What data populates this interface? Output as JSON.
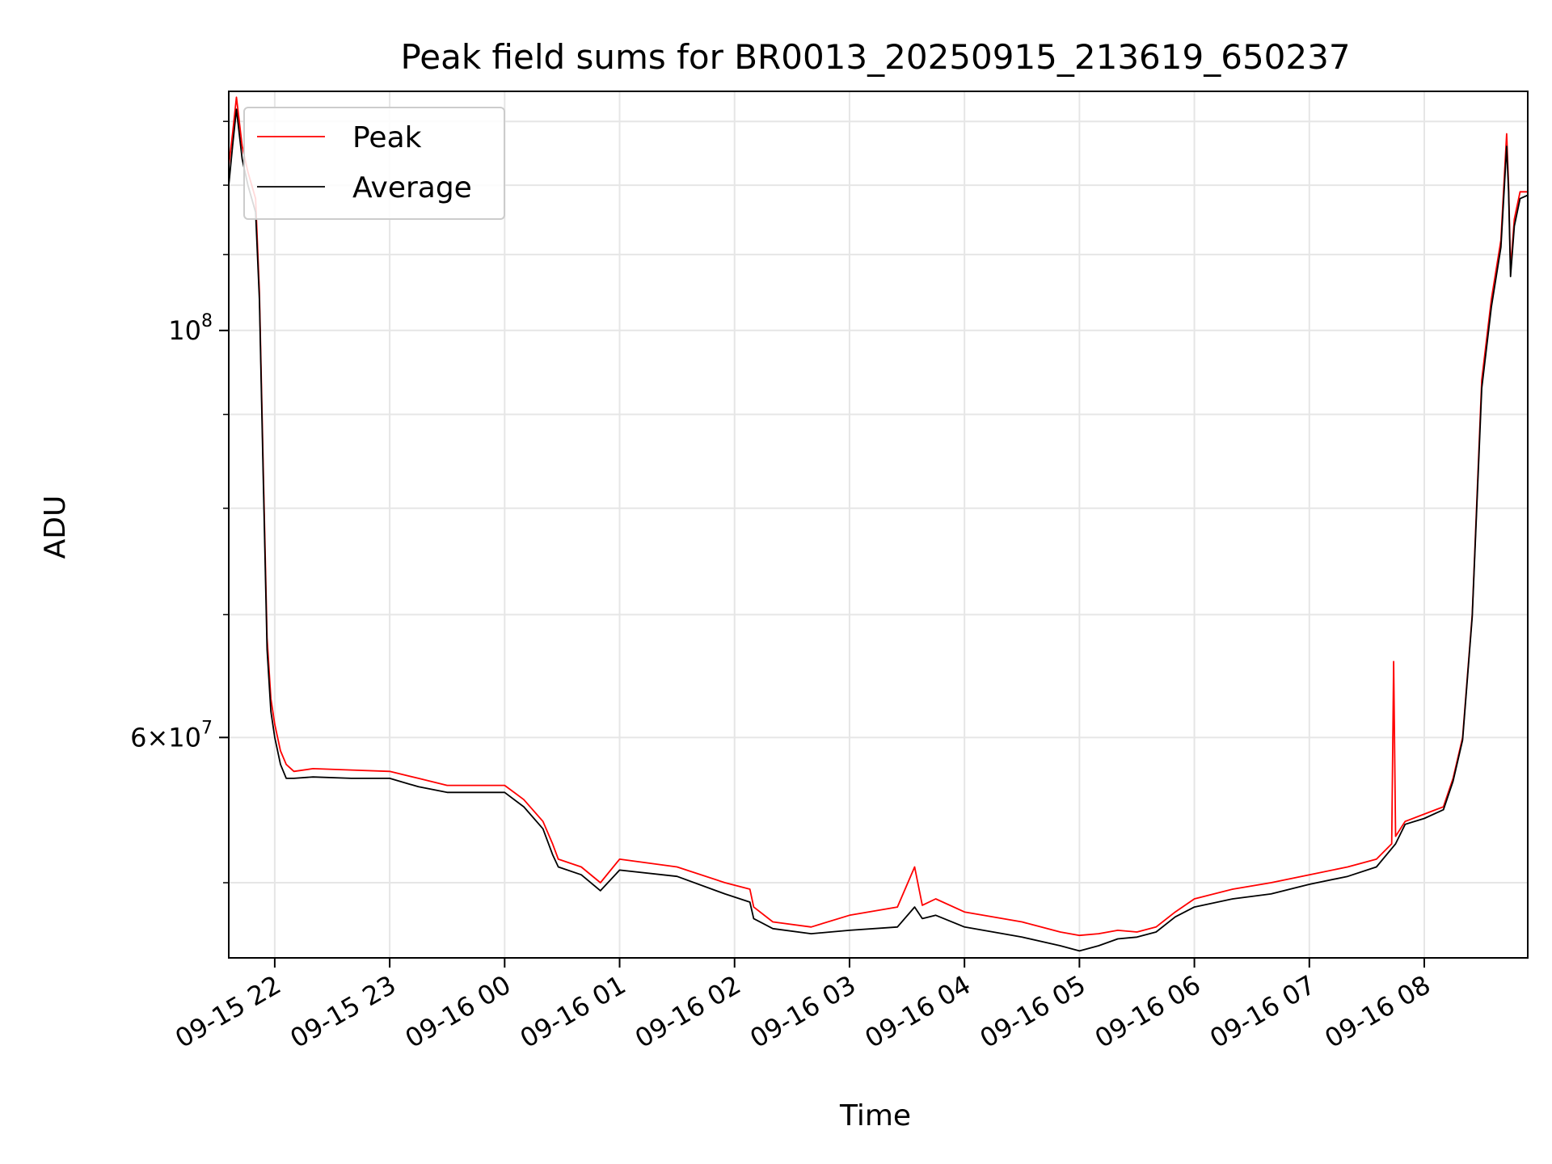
{
  "chart_data": {
    "type": "line",
    "title": "Peak field sums for BR0013_20250915_213619_650237",
    "xlabel": "Time",
    "ylabel": "ADU",
    "y_scale": "log",
    "x_range": [
      "2025-09-15 21:36",
      "2025-09-16 08:54"
    ],
    "ylim": [
      45500000,
      135000000
    ],
    "grid": true,
    "legend_position": "top-left",
    "x_ticks": [
      "09-15 22",
      "09-15 23",
      "09-16 00",
      "09-16 01",
      "09-16 02",
      "09-16 03",
      "09-16 04",
      "09-16 05",
      "09-16 06",
      "09-16 07",
      "09-16 08"
    ],
    "y_ticks": [
      {
        "value": 100000000,
        "label": "10^8"
      },
      {
        "value": 60000000,
        "label": "6×10^7"
      }
    ],
    "series": [
      {
        "name": "Peak",
        "color": "#ff0000",
        "x": [
          "2025-09-15 21:36",
          "2025-09-15 21:38",
          "2025-09-15 21:40",
          "2025-09-15 21:43",
          "2025-09-15 21:46",
          "2025-09-15 21:50",
          "2025-09-15 21:52",
          "2025-09-15 21:54",
          "2025-09-15 21:56",
          "2025-09-15 21:58",
          "2025-09-15 22:00",
          "2025-09-15 22:03",
          "2025-09-15 22:06",
          "2025-09-15 22:10",
          "2025-09-15 22:20",
          "2025-09-15 22:40",
          "2025-09-15 23:00",
          "2025-09-15 23:15",
          "2025-09-15 23:30",
          "2025-09-16 00:00",
          "2025-09-16 00:10",
          "2025-09-16 00:20",
          "2025-09-16 00:25",
          "2025-09-16 00:28",
          "2025-09-16 00:40",
          "2025-09-16 00:50",
          "2025-09-16 01:00",
          "2025-09-16 01:30",
          "2025-09-16 01:55",
          "2025-09-16 02:08",
          "2025-09-16 02:10",
          "2025-09-16 02:20",
          "2025-09-16 02:40",
          "2025-09-16 03:00",
          "2025-09-16 03:25",
          "2025-09-16 03:34",
          "2025-09-16 03:38",
          "2025-09-16 03:45",
          "2025-09-16 04:00",
          "2025-09-16 04:30",
          "2025-09-16 04:50",
          "2025-09-16 05:00",
          "2025-09-16 05:10",
          "2025-09-16 05:20",
          "2025-09-16 05:30",
          "2025-09-16 05:40",
          "2025-09-16 05:50",
          "2025-09-16 06:00",
          "2025-09-16 06:20",
          "2025-09-16 06:40",
          "2025-09-16 07:00",
          "2025-09-16 07:20",
          "2025-09-16 07:35",
          "2025-09-16 07:43",
          "2025-09-16 07:44",
          "2025-09-16 07:45",
          "2025-09-16 07:50",
          "2025-09-16 08:00",
          "2025-09-16 08:10",
          "2025-09-16 08:15",
          "2025-09-16 08:20",
          "2025-09-16 08:25",
          "2025-09-16 08:30",
          "2025-09-16 08:35",
          "2025-09-16 08:40",
          "2025-09-16 08:43",
          "2025-09-16 08:44",
          "2025-09-16 08:45",
          "2025-09-16 08:47",
          "2025-09-16 08:50",
          "2025-09-16 08:54"
        ],
        "y": [
          123000000,
          128000000,
          134000000,
          126000000,
          122000000,
          118000000,
          105000000,
          84000000,
          68000000,
          63000000,
          61000000,
          59000000,
          58000000,
          57500000,
          57700000,
          57600000,
          57500000,
          57000000,
          56500000,
          56500000,
          55500000,
          54000000,
          52500000,
          51500000,
          51000000,
          50000000,
          51500000,
          51000000,
          50000000,
          49600000,
          48500000,
          47600000,
          47300000,
          48000000,
          48500000,
          51000000,
          48600000,
          49000000,
          48200000,
          47600000,
          47000000,
          46800000,
          46900000,
          47100000,
          47000000,
          47300000,
          48200000,
          49000000,
          49600000,
          50000000,
          50500000,
          51000000,
          51500000,
          52500000,
          66000000,
          53000000,
          54000000,
          54500000,
          55000000,
          57000000,
          60000000,
          70000000,
          94000000,
          104000000,
          112000000,
          128000000,
          120000000,
          108000000,
          115000000,
          119000000,
          119000000
        ]
      },
      {
        "name": "Average",
        "color": "#000000",
        "x": [
          "2025-09-15 21:36",
          "2025-09-15 21:38",
          "2025-09-15 21:40",
          "2025-09-15 21:43",
          "2025-09-15 21:46",
          "2025-09-15 21:50",
          "2025-09-15 21:52",
          "2025-09-15 21:54",
          "2025-09-15 21:56",
          "2025-09-15 21:58",
          "2025-09-15 22:00",
          "2025-09-15 22:03",
          "2025-09-15 22:06",
          "2025-09-15 22:10",
          "2025-09-15 22:20",
          "2025-09-15 22:40",
          "2025-09-15 23:00",
          "2025-09-15 23:15",
          "2025-09-15 23:30",
          "2025-09-16 00:00",
          "2025-09-16 00:10",
          "2025-09-16 00:20",
          "2025-09-16 00:25",
          "2025-09-16 00:28",
          "2025-09-16 00:40",
          "2025-09-16 00:50",
          "2025-09-16 01:00",
          "2025-09-16 01:30",
          "2025-09-16 01:55",
          "2025-09-16 02:08",
          "2025-09-16 02:10",
          "2025-09-16 02:20",
          "2025-09-16 02:40",
          "2025-09-16 03:00",
          "2025-09-16 03:25",
          "2025-09-16 03:34",
          "2025-09-16 03:38",
          "2025-09-16 03:45",
          "2025-09-16 04:00",
          "2025-09-16 04:30",
          "2025-09-16 04:50",
          "2025-09-16 05:00",
          "2025-09-16 05:10",
          "2025-09-16 05:20",
          "2025-09-16 05:30",
          "2025-09-16 05:40",
          "2025-09-16 05:50",
          "2025-09-16 06:00",
          "2025-09-16 06:20",
          "2025-09-16 06:40",
          "2025-09-16 07:00",
          "2025-09-16 07:20",
          "2025-09-16 07:35",
          "2025-09-16 07:45",
          "2025-09-16 07:50",
          "2025-09-16 08:00",
          "2025-09-16 08:10",
          "2025-09-16 08:15",
          "2025-09-16 08:20",
          "2025-09-16 08:25",
          "2025-09-16 08:30",
          "2025-09-16 08:35",
          "2025-09-16 08:40",
          "2025-09-16 08:43",
          "2025-09-16 08:44",
          "2025-09-16 08:45",
          "2025-09-16 08:47",
          "2025-09-16 08:50",
          "2025-09-16 08:54"
        ],
        "y": [
          120000000,
          126000000,
          132000000,
          124000000,
          120000000,
          116000000,
          104000000,
          83000000,
          67000000,
          62000000,
          60000000,
          58000000,
          57000000,
          57000000,
          57100000,
          57000000,
          57000000,
          56400000,
          56000000,
          56000000,
          55000000,
          53500000,
          51800000,
          51000000,
          50500000,
          49500000,
          50800000,
          50400000,
          49300000,
          48800000,
          47800000,
          47200000,
          46900000,
          47100000,
          47300000,
          48500000,
          47800000,
          48000000,
          47300000,
          46700000,
          46200000,
          45900000,
          46200000,
          46600000,
          46700000,
          47000000,
          47900000,
          48500000,
          49000000,
          49300000,
          49900000,
          50400000,
          51000000,
          52500000,
          53800000,
          54200000,
          54800000,
          56800000,
          59800000,
          69800000,
          93000000,
          103000000,
          111000000,
          126000000,
          119000000,
          107000000,
          114000000,
          118000000,
          118500000
        ]
      }
    ]
  }
}
